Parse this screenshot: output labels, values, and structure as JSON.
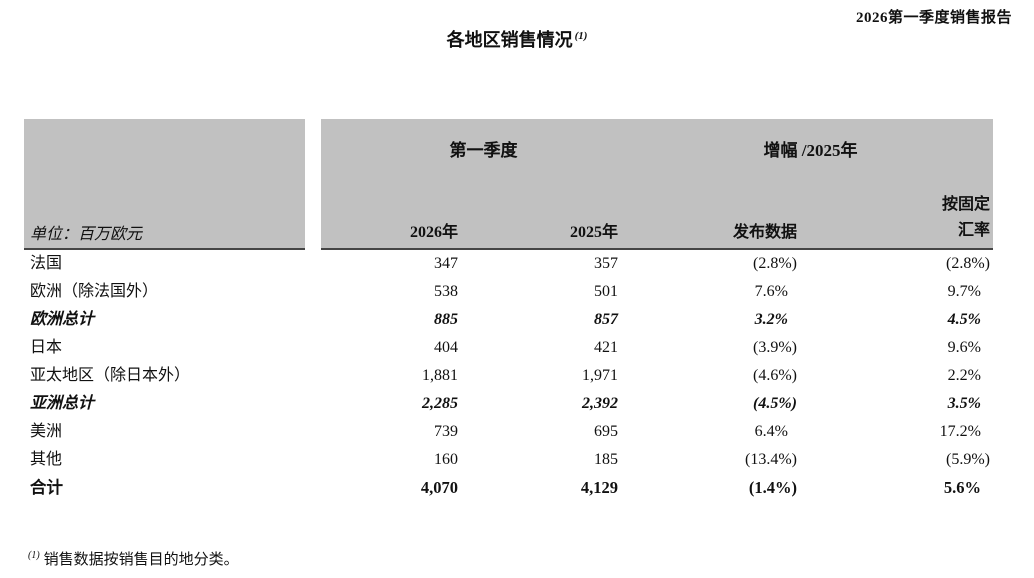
{
  "page": {
    "report_title": "2026第一季度销售报告",
    "title": "各地区销售情况",
    "title_footnote_marker": "(1)",
    "footnote_marker": "(1)",
    "footnote_text": "销售数据按销售目的地分类。"
  },
  "table": {
    "unit_label": "单位：百万欧元",
    "group_headers": {
      "q1": "第一季度",
      "growth": "增幅 /2025年"
    },
    "column_headers": {
      "y2026": "2026年",
      "y2025": "2025年",
      "published": "发布数据",
      "constant_fx_line1": "按固定",
      "constant_fx_line2": "汇率"
    },
    "rows": [
      {
        "label": "法国",
        "y2026": "347",
        "y2025": "357",
        "published": "(2.8%)",
        "constant_fx": "(2.8%)",
        "style": "normal"
      },
      {
        "label": "欧洲（除法国外）",
        "y2026": "538",
        "y2025": "501",
        "published": "7.6%",
        "constant_fx": "9.7%",
        "style": "normal"
      },
      {
        "label": "欧洲总计",
        "y2026": "885",
        "y2025": "857",
        "published": "3.2%",
        "constant_fx": "4.5%",
        "style": "subtotal"
      },
      {
        "label": "日本",
        "y2026": "404",
        "y2025": "421",
        "published": "(3.9%)",
        "constant_fx": "9.6%",
        "style": "normal"
      },
      {
        "label": "亚太地区（除日本外）",
        "y2026": "1,881",
        "y2025": "1,971",
        "published": "(4.6%)",
        "constant_fx": "2.2%",
        "style": "normal"
      },
      {
        "label": "亚洲总计",
        "y2026": "2,285",
        "y2025": "2,392",
        "published": "(4.5%)",
        "constant_fx": "3.5%",
        "style": "subtotal"
      },
      {
        "label": "美洲",
        "y2026": "739",
        "y2025": "695",
        "published": "6.4%",
        "constant_fx": "17.2%",
        "style": "normal"
      },
      {
        "label": "其他",
        "y2026": "160",
        "y2025": "185",
        "published": "(13.4%)",
        "constant_fx": "(5.9%)",
        "style": "normal"
      },
      {
        "label": "合计",
        "y2026": "4,070",
        "y2025": "4,129",
        "published": "(1.4%)",
        "constant_fx": "5.6%",
        "style": "total"
      }
    ]
  },
  "colors": {
    "header_bg": "#c1c1c1",
    "header_rule": "#454545",
    "text": "#111111"
  }
}
